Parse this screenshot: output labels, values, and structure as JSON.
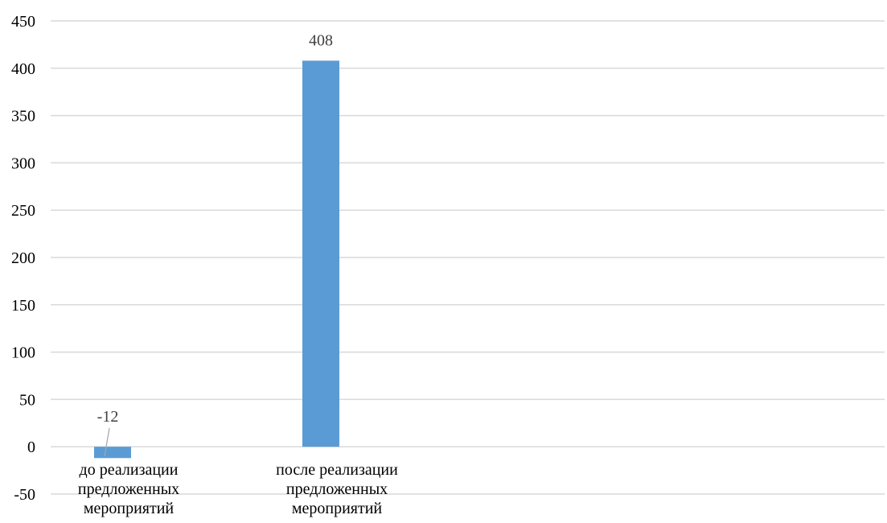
{
  "chart_data": {
    "type": "bar",
    "categories": [
      [
        "до реализации",
        "предложенных",
        "мероприятий"
      ],
      [
        "после реализации",
        "предложенных",
        "мероприятий"
      ]
    ],
    "values": [
      -12,
      408
    ],
    "data_labels": [
      "-12",
      "408"
    ],
    "ylim": [
      -50,
      450
    ],
    "yticks": [
      450,
      400,
      350,
      300,
      250,
      200,
      150,
      100,
      50,
      0,
      -50
    ],
    "grid": true,
    "legend": "none",
    "title": "",
    "xlabel": "",
    "ylabel": ""
  },
  "colors": {
    "bar": "#5b9bd5",
    "grid": "#d9d9d9",
    "leader_line": "#a6a6a6",
    "data_label": "#404040"
  }
}
